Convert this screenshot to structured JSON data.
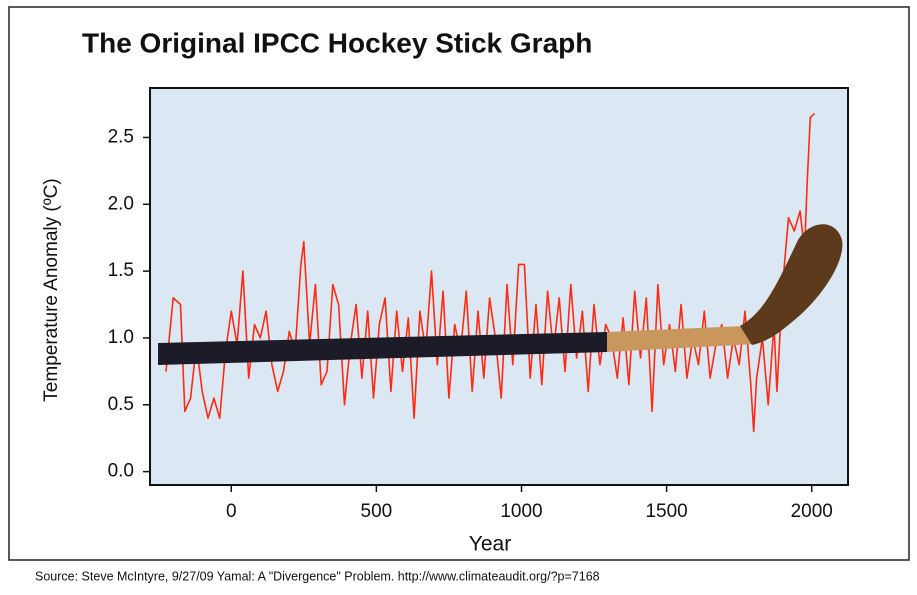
{
  "chart_data": {
    "type": "line",
    "title": "The Original IPCC Hockey Stick Graph",
    "x_label": "Year",
    "y_label": "Temperature Anomaly (ºC)",
    "source": "Source: Steve McIntyre, 9/27/09 Yamal: A \"Divergence\" Problem. http://www.climateaudit.org/?p=7168",
    "color": "#ff2a10",
    "x": [
      -225,
      -200,
      -175,
      -160,
      -140,
      -120,
      -100,
      -80,
      -60,
      -40,
      -20,
      0,
      20,
      40,
      60,
      80,
      100,
      120,
      140,
      160,
      180,
      200,
      220,
      240,
      250,
      270,
      290,
      310,
      330,
      350,
      370,
      390,
      410,
      430,
      450,
      470,
      490,
      510,
      530,
      550,
      570,
      590,
      610,
      630,
      650,
      670,
      690,
      710,
      730,
      750,
      770,
      790,
      810,
      830,
      850,
      870,
      890,
      910,
      930,
      950,
      970,
      990,
      1010,
      1030,
      1050,
      1070,
      1090,
      1110,
      1130,
      1150,
      1170,
      1190,
      1210,
      1230,
      1250,
      1270,
      1290,
      1310,
      1330,
      1350,
      1370,
      1390,
      1410,
      1430,
      1450,
      1470,
      1490,
      1510,
      1530,
      1550,
      1570,
      1590,
      1610,
      1630,
      1650,
      1670,
      1690,
      1710,
      1730,
      1750,
      1770,
      1790,
      1800,
      1810,
      1830,
      1850,
      1870,
      1880,
      1900,
      1920,
      1940,
      1960,
      1975,
      1985,
      1995,
      2010
    ],
    "values": [
      0.75,
      1.3,
      1.25,
      0.45,
      0.55,
      0.95,
      0.6,
      0.4,
      0.55,
      0.4,
      0.9,
      1.2,
      0.95,
      1.5,
      0.7,
      1.1,
      1.0,
      1.2,
      0.8,
      0.6,
      0.75,
      1.05,
      0.9,
      1.55,
      1.72,
      0.95,
      1.4,
      0.65,
      0.75,
      1.4,
      1.25,
      0.5,
      0.95,
      1.25,
      0.7,
      1.2,
      0.55,
      1.1,
      1.3,
      0.6,
      1.2,
      0.75,
      1.15,
      0.4,
      1.2,
      0.9,
      1.5,
      0.8,
      1.35,
      0.55,
      1.1,
      0.9,
      1.35,
      0.6,
      1.2,
      0.7,
      1.3,
      1.0,
      0.55,
      1.4,
      0.8,
      1.55,
      1.55,
      0.7,
      1.25,
      0.65,
      1.35,
      0.9,
      1.3,
      0.75,
      1.4,
      0.85,
      1.2,
      0.6,
      1.25,
      0.8,
      1.1,
      1.0,
      0.7,
      1.15,
      0.65,
      1.35,
      0.85,
      1.3,
      0.45,
      1.4,
      0.8,
      1.1,
      0.75,
      1.25,
      0.7,
      1.0,
      0.8,
      1.2,
      0.7,
      0.95,
      1.1,
      0.7,
      1.0,
      0.8,
      1.2,
      0.65,
      0.3,
      0.7,
      1.0,
      0.5,
      1.1,
      0.6,
      1.4,
      1.9,
      1.8,
      1.95,
      1.65,
      2.2,
      2.65,
      2.68
    ],
    "xlim": [
      -280,
      2125
    ],
    "ylim": [
      -0.1,
      2.87
    ],
    "xticks": [
      0,
      500,
      1000,
      1500,
      2000
    ],
    "yticks": [
      {
        "value": 0,
        "label": "0.0"
      },
      0.5,
      {
        "value": 1,
        "label": "1.0"
      },
      1.5,
      {
        "value": 2,
        "label": "2.0"
      },
      2.5
    ],
    "grid": false
  }
}
